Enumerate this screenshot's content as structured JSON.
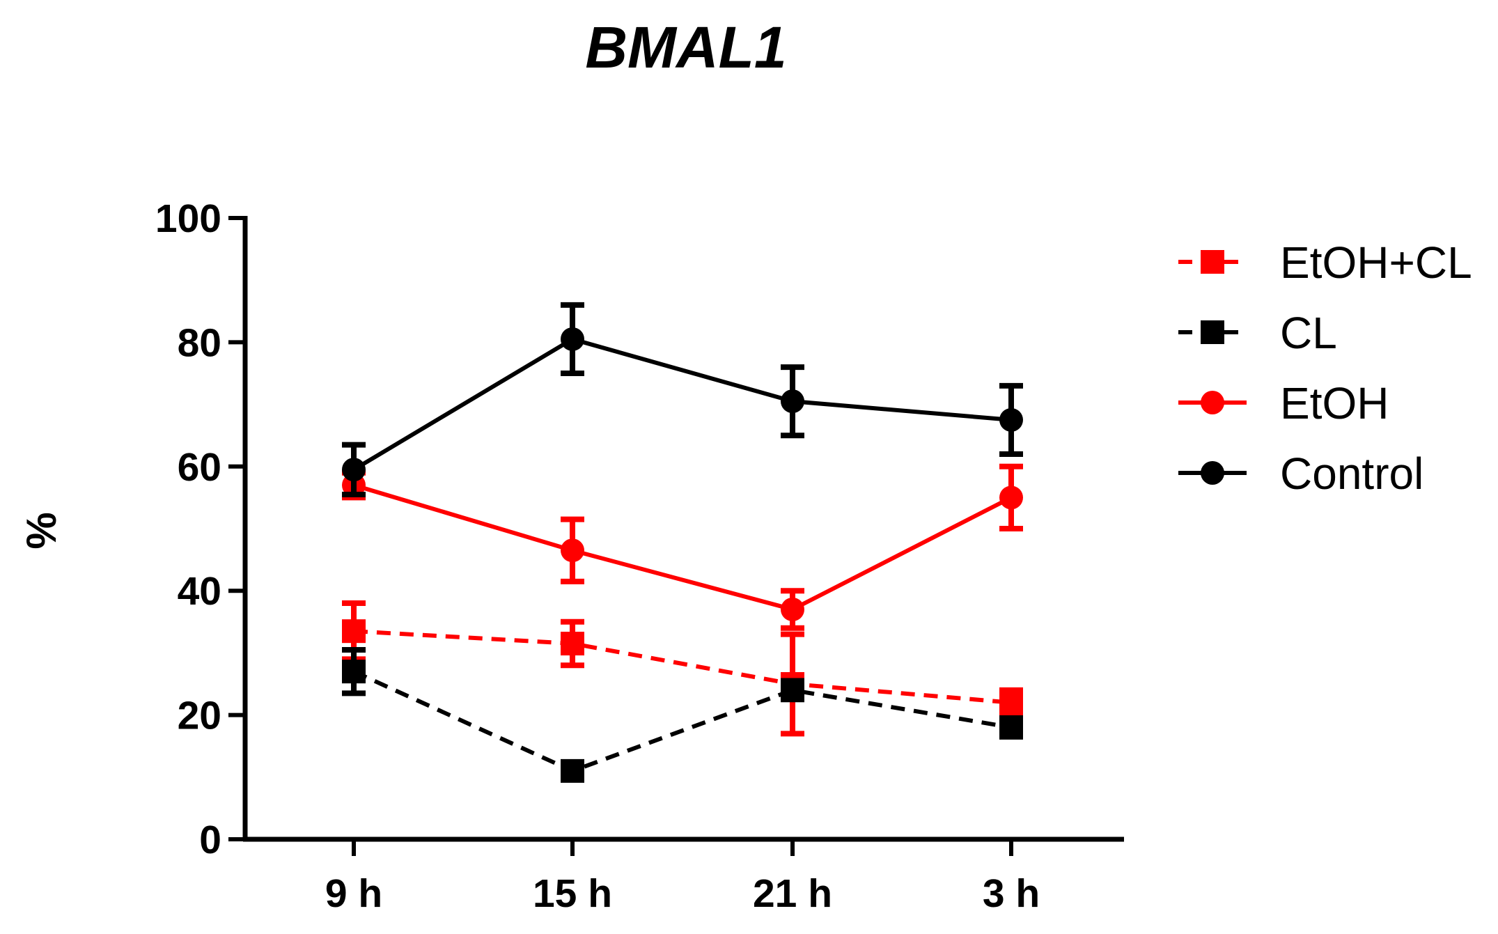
{
  "chart_data": {
    "type": "line",
    "title": "BMAL1",
    "xlabel": "",
    "ylabel": "%",
    "ylim": [
      0,
      100
    ],
    "y_ticks": [
      0,
      20,
      40,
      60,
      80,
      100
    ],
    "categories": [
      "9 h",
      "15 h",
      "21 h",
      "3 h"
    ],
    "grid": false,
    "legend_position": "right",
    "series": [
      {
        "name": "EtOH+CL",
        "color": "#ff0000",
        "marker": "square",
        "line_style": "dashed",
        "values": [
          33.5,
          31.5,
          25,
          22
        ],
        "errors": [
          4.5,
          3.5,
          8,
          2
        ]
      },
      {
        "name": "CL",
        "color": "#000000",
        "marker": "square",
        "line_style": "dashed",
        "values": [
          27,
          11,
          24,
          18
        ],
        "errors": [
          3.5,
          1,
          1.5,
          1.5
        ]
      },
      {
        "name": "EtOH",
        "color": "#ff0000",
        "marker": "circle",
        "line_style": "solid",
        "values": [
          57,
          46.5,
          37,
          55
        ],
        "errors": [
          2,
          5,
          3,
          5
        ]
      },
      {
        "name": "Control",
        "color": "#000000",
        "marker": "circle",
        "line_style": "solid",
        "values": [
          59.5,
          80.5,
          70.5,
          67.5
        ],
        "errors": [
          4,
          5.5,
          5.5,
          5.5
        ]
      }
    ]
  }
}
